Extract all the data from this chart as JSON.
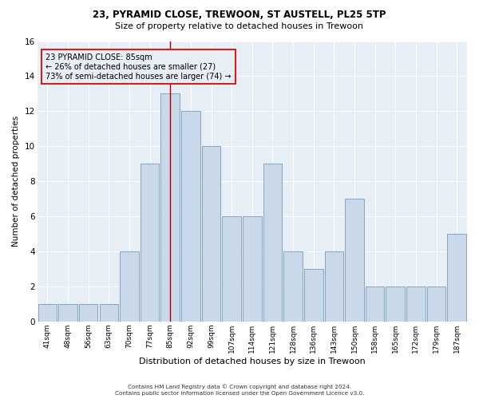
{
  "title1": "23, PYRAMID CLOSE, TREWOON, ST AUSTELL, PL25 5TP",
  "title2": "Size of property relative to detached houses in Trewoon",
  "xlabel": "Distribution of detached houses by size in Trewoon",
  "ylabel": "Number of detached properties",
  "footer1": "Contains HM Land Registry data © Crown copyright and database right 2024.",
  "footer2": "Contains public sector information licensed under the Open Government Licence v3.0.",
  "annotation_title": "23 PYRAMID CLOSE: 85sqm",
  "annotation_line1": "← 26% of detached houses are smaller (27)",
  "annotation_line2": "73% of semi-detached houses are larger (74) →",
  "bar_labels": [
    "41sqm",
    "48sqm",
    "56sqm",
    "63sqm",
    "70sqm",
    "77sqm",
    "85sqm",
    "92sqm",
    "99sqm",
    "107sqm",
    "114sqm",
    "121sqm",
    "128sqm",
    "136sqm",
    "143sqm",
    "150sqm",
    "158sqm",
    "165sqm",
    "172sqm",
    "179sqm",
    "187sqm"
  ],
  "bar_values": [
    1,
    1,
    1,
    1,
    4,
    9,
    13,
    12,
    10,
    6,
    6,
    9,
    4,
    3,
    4,
    7,
    2,
    2,
    2,
    2,
    5
  ],
  "highlight_index": 6,
  "bar_color": "#c9d9ea",
  "bar_edge_color": "#7799bb",
  "highlight_line_color": "#aa0000",
  "annotation_box_edge_color": "#cc2222",
  "background_color": "#ffffff",
  "plot_bg_color": "#e8eef5",
  "ylim": [
    0,
    16
  ],
  "yticks": [
    0,
    2,
    4,
    6,
    8,
    10,
    12,
    14,
    16
  ]
}
